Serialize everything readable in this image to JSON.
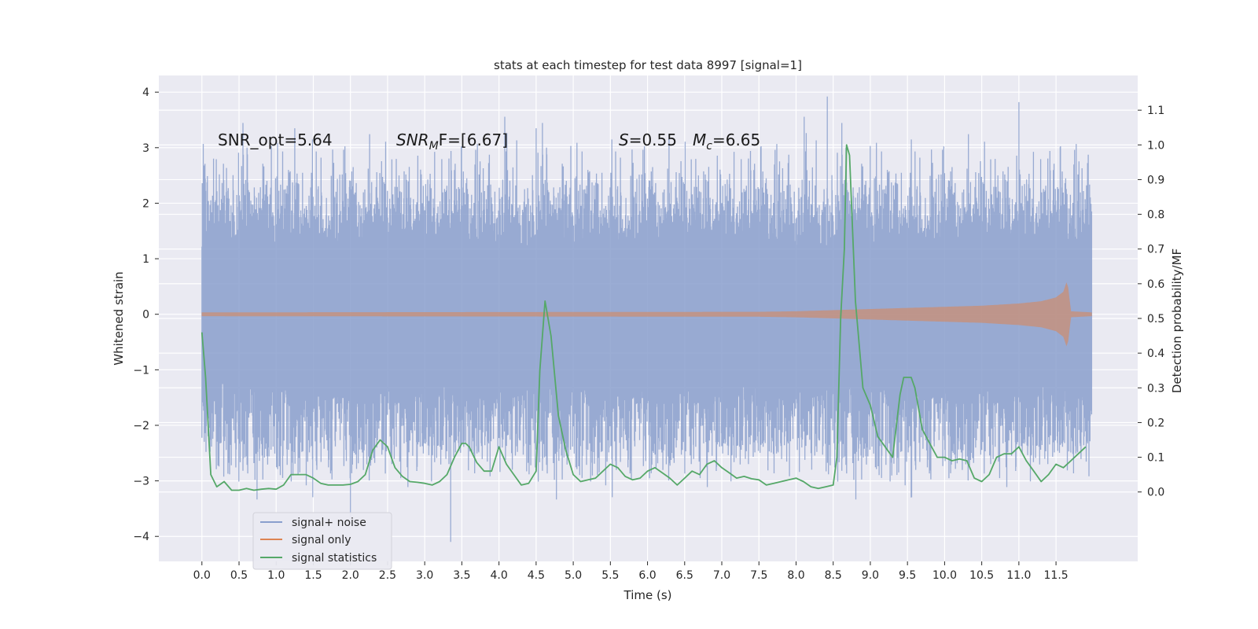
{
  "chart_data": {
    "type": "line",
    "title": "stats at each timestep for test data 8997 [signal=1]",
    "xlabel": "Time (s)",
    "ylabel": "Whitened strain",
    "ylabel_right": "Detection probability/MF",
    "xlim": [
      -0.58,
      12.6
    ],
    "ylim": [
      -4.45,
      4.3
    ],
    "ylim_right": [
      -0.2,
      1.2
    ],
    "x_ticks": [
      0.0,
      0.5,
      1.0,
      1.5,
      2.0,
      2.5,
      3.0,
      3.5,
      4.0,
      4.5,
      5.0,
      5.5,
      6.0,
      6.5,
      7.0,
      7.5,
      8.0,
      8.5,
      9.0,
      9.5,
      10.0,
      10.5,
      11.0,
      11.5
    ],
    "x_tick_labels": [
      "0.0",
      "0.5",
      "1.0",
      "1.5",
      "2.0",
      "2.5",
      "3.0",
      "3.5",
      "4.0",
      "4.5",
      "5.0",
      "5.5",
      "6.0",
      "6.5",
      "7.0",
      "7.5",
      "8.0",
      "8.5",
      "9.0",
      "9.5",
      "10.0",
      "10.5",
      "11.0",
      "11.5"
    ],
    "y_ticks": [
      -4,
      -3,
      -2,
      -1,
      0,
      1,
      2,
      3,
      4
    ],
    "y_tick_labels": [
      "−4",
      "−3",
      "−2",
      "−1",
      "0",
      "1",
      "2",
      "3",
      "4"
    ],
    "y_right_ticks": [
      0.0,
      0.1,
      0.2,
      0.3,
      0.4,
      0.5,
      0.6,
      0.7,
      0.8,
      0.9,
      1.0,
      1.1
    ],
    "y_right_tick_labels": [
      "0.0",
      "0.1",
      "0.2",
      "0.3",
      "0.4",
      "0.5",
      "0.6",
      "0.7",
      "0.8",
      "0.9",
      "1.0",
      "1.1"
    ],
    "grid": true,
    "legend_position": "lower-left",
    "annotations": {
      "snr_opt": "SNR_opt=5.64",
      "snr_mf_main": "SNR",
      "snr_mf_sub": "M",
      "snr_mf_tail": "F=[6.67]",
      "s_sym": "S",
      "s_val": "=0.55",
      "mc_sym": "M",
      "mc_sub": "c",
      "mc_val": "=6.65"
    },
    "series": [
      {
        "name": "signal+ noise",
        "color": "#8a9fcd",
        "axis": "left",
        "time_range": [
          0.0,
          11.98
        ],
        "body_amplitude": 1.2,
        "typical_peak": 2.2,
        "max_value": 3.92,
        "min_value": -4.1
      },
      {
        "name": "signal only",
        "color": "#dd8452",
        "axis": "left",
        "envelope_x": [
          0.0,
          7.5,
          8.0,
          8.5,
          9.0,
          9.5,
          10.0,
          10.5,
          11.0,
          11.3,
          11.5,
          11.6,
          11.65,
          11.7,
          11.98
        ],
        "envelope_y": [
          0.03,
          0.04,
          0.05,
          0.07,
          0.09,
          0.11,
          0.13,
          0.15,
          0.19,
          0.23,
          0.3,
          0.4,
          0.6,
          0.05,
          0.03
        ]
      },
      {
        "name": "signal statistics",
        "color": "#55a868",
        "axis": "right",
        "x": [
          0.0,
          0.05,
          0.12,
          0.2,
          0.3,
          0.4,
          0.5,
          0.6,
          0.7,
          0.8,
          0.9,
          1.0,
          1.1,
          1.2,
          1.3,
          1.4,
          1.5,
          1.6,
          1.7,
          1.8,
          1.9,
          2.0,
          2.1,
          2.2,
          2.3,
          2.4,
          2.45,
          2.5,
          2.6,
          2.7,
          2.8,
          2.9,
          3.0,
          3.1,
          3.2,
          3.3,
          3.4,
          3.5,
          3.55,
          3.6,
          3.7,
          3.8,
          3.9,
          4.0,
          4.1,
          4.2,
          4.3,
          4.4,
          4.5,
          4.55,
          4.62,
          4.7,
          4.8,
          4.9,
          5.0,
          5.1,
          5.2,
          5.3,
          5.4,
          5.5,
          5.6,
          5.7,
          5.8,
          5.9,
          6.0,
          6.1,
          6.2,
          6.3,
          6.4,
          6.5,
          6.6,
          6.7,
          6.8,
          6.9,
          7.0,
          7.1,
          7.2,
          7.3,
          7.4,
          7.5,
          7.6,
          7.7,
          7.8,
          7.9,
          8.0,
          8.1,
          8.2,
          8.3,
          8.4,
          8.5,
          8.55,
          8.6,
          8.65,
          8.68,
          8.72,
          8.8,
          8.9,
          9.0,
          9.1,
          9.2,
          9.3,
          9.4,
          9.45,
          9.5,
          9.55,
          9.6,
          9.7,
          9.8,
          9.9,
          10.0,
          10.1,
          10.2,
          10.3,
          10.4,
          10.5,
          10.6,
          10.7,
          10.8,
          10.9,
          11.0,
          11.1,
          11.2,
          11.3,
          11.4,
          11.5,
          11.6,
          11.7,
          11.8,
          11.9
        ],
        "y": [
          0.46,
          0.33,
          0.05,
          0.015,
          0.03,
          0.005,
          0.005,
          0.01,
          0.005,
          0.008,
          0.01,
          0.008,
          0.02,
          0.05,
          0.05,
          0.05,
          0.04,
          0.025,
          0.02,
          0.02,
          0.02,
          0.022,
          0.03,
          0.05,
          0.12,
          0.15,
          0.14,
          0.13,
          0.07,
          0.045,
          0.03,
          0.028,
          0.025,
          0.02,
          0.03,
          0.05,
          0.1,
          0.14,
          0.14,
          0.13,
          0.085,
          0.06,
          0.06,
          0.13,
          0.08,
          0.05,
          0.02,
          0.025,
          0.06,
          0.35,
          0.55,
          0.45,
          0.22,
          0.12,
          0.05,
          0.03,
          0.035,
          0.04,
          0.06,
          0.08,
          0.07,
          0.045,
          0.035,
          0.04,
          0.06,
          0.07,
          0.055,
          0.04,
          0.02,
          0.04,
          0.06,
          0.05,
          0.08,
          0.09,
          0.07,
          0.055,
          0.04,
          0.045,
          0.038,
          0.035,
          0.02,
          0.025,
          0.03,
          0.035,
          0.04,
          0.03,
          0.015,
          0.01,
          0.015,
          0.02,
          0.1,
          0.5,
          0.7,
          1.0,
          0.97,
          0.55,
          0.3,
          0.25,
          0.16,
          0.13,
          0.1,
          0.28,
          0.33,
          0.33,
          0.33,
          0.3,
          0.18,
          0.14,
          0.1,
          0.1,
          0.09,
          0.095,
          0.09,
          0.04,
          0.03,
          0.05,
          0.1,
          0.11,
          0.11,
          0.13,
          0.09,
          0.06,
          0.03,
          0.05,
          0.08,
          0.07,
          0.09,
          0.11,
          0.13
        ]
      }
    ]
  }
}
